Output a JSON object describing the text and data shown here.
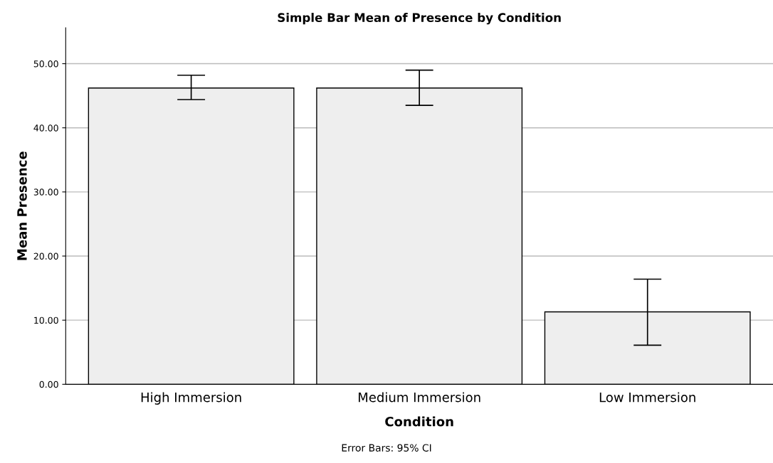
{
  "chart_data": {
    "type": "bar",
    "title": "Simple Bar Mean of Presence by Condition",
    "xlabel": "Condition",
    "ylabel": "Mean Presence",
    "categories": [
      "High Immersion",
      "Medium Immersion",
      "Low Immersion"
    ],
    "values": [
      46.2,
      46.2,
      11.3
    ],
    "errors": [
      [
        44.4,
        48.2
      ],
      [
        43.5,
        49.0
      ],
      [
        6.1,
        16.4
      ]
    ],
    "color": "#eeeeee",
    "ylim": [
      0,
      55.6
    ],
    "yticks": [
      {
        "value": 0,
        "label": "0.00"
      },
      {
        "value": 10,
        "label": "10.00"
      },
      {
        "value": 20,
        "label": "20.00"
      },
      {
        "value": 30,
        "label": "30.00"
      },
      {
        "value": 40,
        "label": "40.00"
      },
      {
        "value": 50,
        "label": "50.00"
      }
    ],
    "grid": "y",
    "annotations": [
      "Error Bars: 95% CI"
    ]
  }
}
